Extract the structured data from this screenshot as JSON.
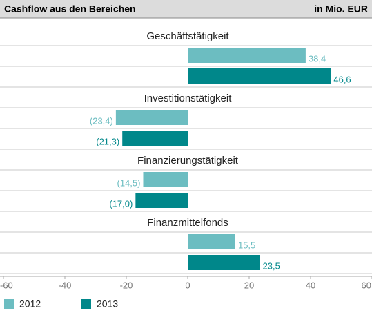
{
  "chart_data": {
    "type": "bar",
    "orientation": "horizontal",
    "title": "Cashflow aus den Bereichen",
    "unit": "in Mio. EUR",
    "categories": [
      "Geschäftstätigkeit",
      "Investitionstätigkeit",
      "Finanzierungstätigkeit",
      "Finanzmittelfonds"
    ],
    "series": [
      {
        "name": "2012",
        "color": "#6cbdc1",
        "values": [
          38.4,
          -23.4,
          -14.5,
          15.5
        ],
        "value_labels": [
          "38,4",
          "(23,4)",
          "(14,5)",
          "15,5"
        ]
      },
      {
        "name": "2013",
        "color": "#00878a",
        "values": [
          46.6,
          -21.3,
          -17.0,
          23.5
        ],
        "value_labels": [
          "46,6",
          "(21,3)",
          "(17,0)",
          "23,5"
        ]
      }
    ],
    "xlim": [
      -60,
      60
    ],
    "xticks": [
      -60,
      -40,
      -20,
      0,
      20,
      40,
      60
    ]
  }
}
